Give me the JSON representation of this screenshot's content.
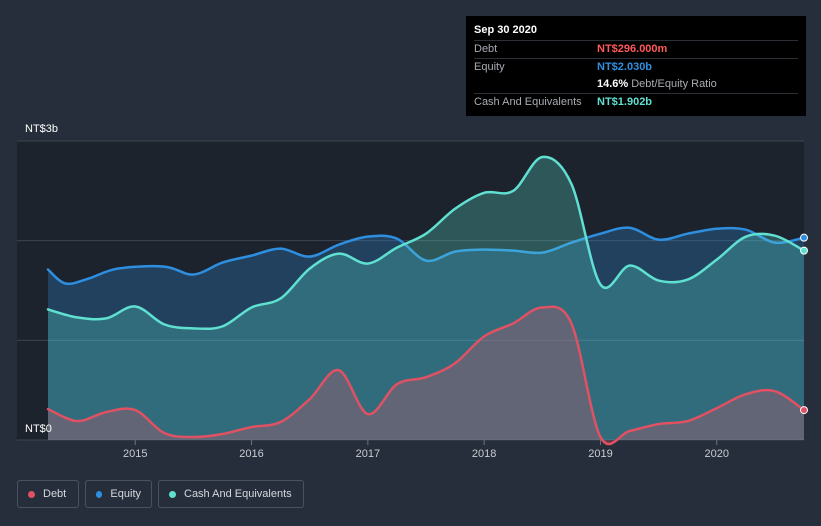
{
  "tooltip": {
    "date": "Sep 30 2020",
    "debt_label": "Debt",
    "debt_value": "NT$296.000m",
    "equity_label": "Equity",
    "equity_value": "NT$2.030b",
    "ratio_value": "14.6%",
    "ratio_label": "Debt/Equity Ratio",
    "cash_label": "Cash And Equivalents",
    "cash_value": "NT$1.902b"
  },
  "legend": [
    {
      "label": "Debt",
      "color": "#e05263"
    },
    {
      "label": "Equity",
      "color": "#2e8fe0"
    },
    {
      "label": "Cash And Equivalents",
      "color": "#5fe0d1"
    }
  ],
  "colors": {
    "background": "#262e3b",
    "debt": "#e05263",
    "equity": "#2e8fe0",
    "cash": "#5fe0d1",
    "debt_value_text": "#e05263",
    "equity_value_text": "#2e8fe0",
    "cash_value_text": "#5fe0d1"
  },
  "chart_data": {
    "type": "area",
    "y_axis_labels": [
      "NT$3b",
      "NT$0"
    ],
    "ylim": [
      0,
      3.0
    ],
    "x_ticks": [
      {
        "label": "2015",
        "x": 2015.0
      },
      {
        "label": "2016",
        "x": 2016.0
      },
      {
        "label": "2017",
        "x": 2017.0
      },
      {
        "label": "2018",
        "x": 2018.0
      },
      {
        "label": "2019",
        "x": 2019.0
      },
      {
        "label": "2020",
        "x": 2020.0
      }
    ],
    "grid": true,
    "series": [
      {
        "name": "Equity",
        "color": "#2e8fe0",
        "x": [
          2014.25,
          2014.4,
          2014.6,
          2014.85,
          2015.25,
          2015.5,
          2015.75,
          2016.0,
          2016.25,
          2016.5,
          2016.75,
          2017.0,
          2017.25,
          2017.5,
          2017.75,
          2018.0,
          2018.25,
          2018.5,
          2018.75,
          2019.0,
          2019.25,
          2019.5,
          2019.75,
          2020.0,
          2020.25,
          2020.5,
          2020.75
        ],
        "values": [
          1.71,
          1.57,
          1.62,
          1.72,
          1.74,
          1.66,
          1.78,
          1.85,
          1.92,
          1.84,
          1.96,
          2.04,
          2.02,
          1.8,
          1.89,
          1.91,
          1.9,
          1.88,
          1.98,
          2.07,
          2.13,
          2.01,
          2.07,
          2.12,
          2.11,
          1.98,
          2.03
        ]
      },
      {
        "name": "Cash And Equivalents",
        "color": "#5fe0d1",
        "x": [
          2014.25,
          2014.5,
          2014.75,
          2015.0,
          2015.25,
          2015.5,
          2015.75,
          2016.0,
          2016.25,
          2016.5,
          2016.75,
          2017.0,
          2017.25,
          2017.5,
          2017.75,
          2018.0,
          2018.25,
          2018.5,
          2018.75,
          2019.0,
          2019.25,
          2019.5,
          2019.75,
          2020.0,
          2020.25,
          2020.5,
          2020.75
        ],
        "values": [
          1.31,
          1.23,
          1.22,
          1.34,
          1.16,
          1.12,
          1.14,
          1.33,
          1.42,
          1.72,
          1.87,
          1.77,
          1.93,
          2.07,
          2.32,
          2.48,
          2.5,
          2.84,
          2.57,
          1.56,
          1.75,
          1.6,
          1.61,
          1.81,
          2.04,
          2.05,
          1.9
        ]
      },
      {
        "name": "Debt",
        "color": "#e05263",
        "x": [
          2014.25,
          2014.5,
          2014.75,
          2015.0,
          2015.25,
          2015.5,
          2015.75,
          2016.0,
          2016.25,
          2016.5,
          2016.75,
          2017.0,
          2017.25,
          2017.5,
          2017.75,
          2018.0,
          2018.25,
          2018.5,
          2018.75,
          2019.0,
          2019.25,
          2019.5,
          2019.75,
          2020.0,
          2020.25,
          2020.5,
          2020.75
        ],
        "values": [
          0.31,
          0.19,
          0.28,
          0.3,
          0.07,
          0.03,
          0.06,
          0.13,
          0.18,
          0.41,
          0.7,
          0.26,
          0.56,
          0.63,
          0.77,
          1.04,
          1.17,
          1.33,
          1.17,
          0.03,
          0.09,
          0.16,
          0.19,
          0.32,
          0.46,
          0.49,
          0.3
        ]
      }
    ]
  }
}
